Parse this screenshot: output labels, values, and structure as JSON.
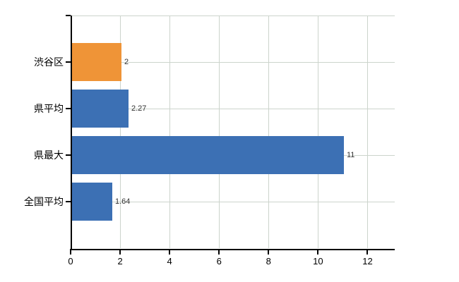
{
  "chart_data": {
    "type": "bar",
    "orientation": "horizontal",
    "title": "",
    "xlabel": "",
    "ylabel": "",
    "categories": [
      "渋谷区",
      "県平均",
      "県最大",
      "全国平均"
    ],
    "values": [
      2,
      2.27,
      11,
      1.64
    ],
    "value_labels": [
      "2",
      "2.27",
      "11",
      "1.64"
    ],
    "bar_colors": [
      "#EF9437",
      "#3C70B4",
      "#3C70B4",
      "#3C70B4"
    ],
    "x_ticks": [
      0,
      2,
      4,
      6,
      8,
      10,
      12
    ],
    "xlim": [
      0,
      13.1
    ],
    "grid": true,
    "legend": false,
    "gridline_color": "#ccd4cc",
    "axis_color": "#000000",
    "background_color": "#ffffff"
  }
}
